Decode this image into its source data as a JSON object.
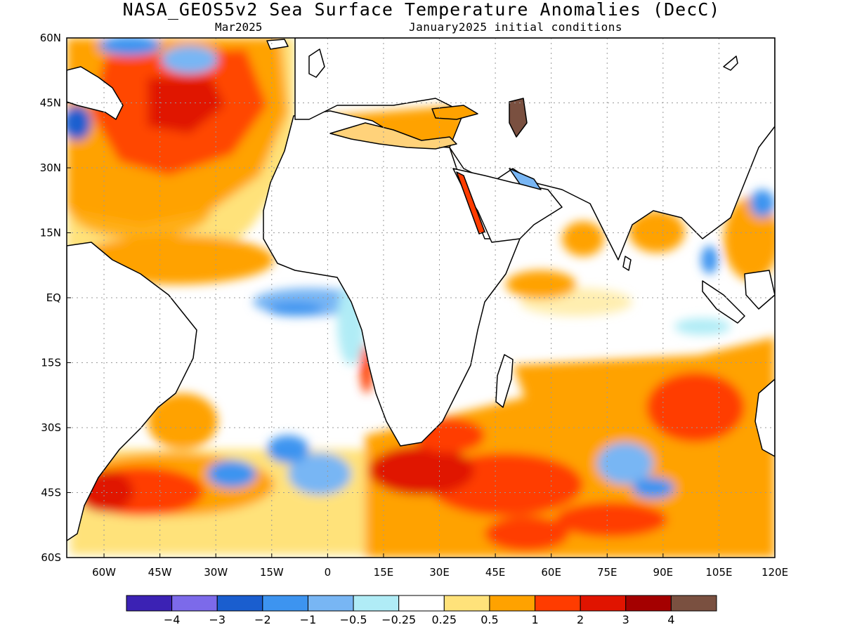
{
  "title": "NASA_GEOS5v2 Sea Surface Temperature Anomalies (DecC)",
  "subtitle_left": "Mar2025",
  "subtitle_right": "January2025 initial conditions",
  "axes": {
    "lon_range": [
      -70,
      120
    ],
    "lat_range": [
      -60,
      60
    ],
    "x_ticks": [
      {
        "value": -60,
        "label": "60W"
      },
      {
        "value": -45,
        "label": "45W"
      },
      {
        "value": -30,
        "label": "30W"
      },
      {
        "value": -15,
        "label": "15W"
      },
      {
        "value": 0,
        "label": "0"
      },
      {
        "value": 15,
        "label": "15E"
      },
      {
        "value": 30,
        "label": "30E"
      },
      {
        "value": 45,
        "label": "45E"
      },
      {
        "value": 60,
        "label": "60E"
      },
      {
        "value": 75,
        "label": "75E"
      },
      {
        "value": 90,
        "label": "90E"
      },
      {
        "value": 105,
        "label": "105E"
      },
      {
        "value": 120,
        "label": "120E"
      }
    ],
    "y_ticks": [
      {
        "value": 60,
        "label": "60N"
      },
      {
        "value": 45,
        "label": "45N"
      },
      {
        "value": 30,
        "label": "30N"
      },
      {
        "value": 15,
        "label": "15N"
      },
      {
        "value": 0,
        "label": "EQ"
      },
      {
        "value": -15,
        "label": "15S"
      },
      {
        "value": -30,
        "label": "30S"
      },
      {
        "value": -45,
        "label": "45S"
      },
      {
        "value": -60,
        "label": "60S"
      }
    ],
    "grid": "dotted"
  },
  "colorbar": {
    "colors": [
      "#3b22b4",
      "#7c6aea",
      "#1a5ecf",
      "#3d94f0",
      "#78b6f4",
      "#b0ecf6",
      "#ffffff",
      "#ffe27a",
      "#ffa200",
      "#ff3c00",
      "#e01400",
      "#a40000",
      "#7a5040"
    ],
    "labels": [
      "−4",
      "−3",
      "−2",
      "−1",
      "−0.5",
      "−0.25",
      "0.25",
      "0.5",
      "1",
      "2",
      "3",
      "4"
    ]
  },
  "anomaly_regions": [
    {
      "lon": -50,
      "lat": 44,
      "value": 2
    },
    {
      "lon": -40,
      "lat": 44,
      "value": 4
    },
    {
      "lon": -25,
      "lat": 52,
      "value": 2
    },
    {
      "lon": -65,
      "lat": 42,
      "value": -2
    },
    {
      "lon": -50,
      "lat": 58,
      "value": -1
    },
    {
      "lon": -45,
      "lat": 30,
      "value": 1
    },
    {
      "lon": -30,
      "lat": 20,
      "value": 0.5
    },
    {
      "lon": -5,
      "lat": -2,
      "value": -0.5
    },
    {
      "lon": 10,
      "lat": -15,
      "value": 2
    },
    {
      "lon": -40,
      "lat": -40,
      "value": 2
    },
    {
      "lon": -22,
      "lat": -43,
      "value": -2
    },
    {
      "lon": 0,
      "lat": -38,
      "value": -1
    },
    {
      "lon": 25,
      "lat": -43,
      "value": 3
    },
    {
      "lon": 50,
      "lat": -45,
      "value": 2
    },
    {
      "lon": 70,
      "lat": -52,
      "value": 2
    },
    {
      "lon": 80,
      "lat": -40,
      "value": -1
    },
    {
      "lon": 95,
      "lat": -25,
      "value": 2
    },
    {
      "lon": 60,
      "lat": -22,
      "value": 1
    },
    {
      "lon": 60,
      "lat": 10,
      "value": -0.25
    },
    {
      "lon": 95,
      "lat": 18,
      "value": 0.5
    },
    {
      "lon": 110,
      "lat": 15,
      "value": -1
    }
  ]
}
